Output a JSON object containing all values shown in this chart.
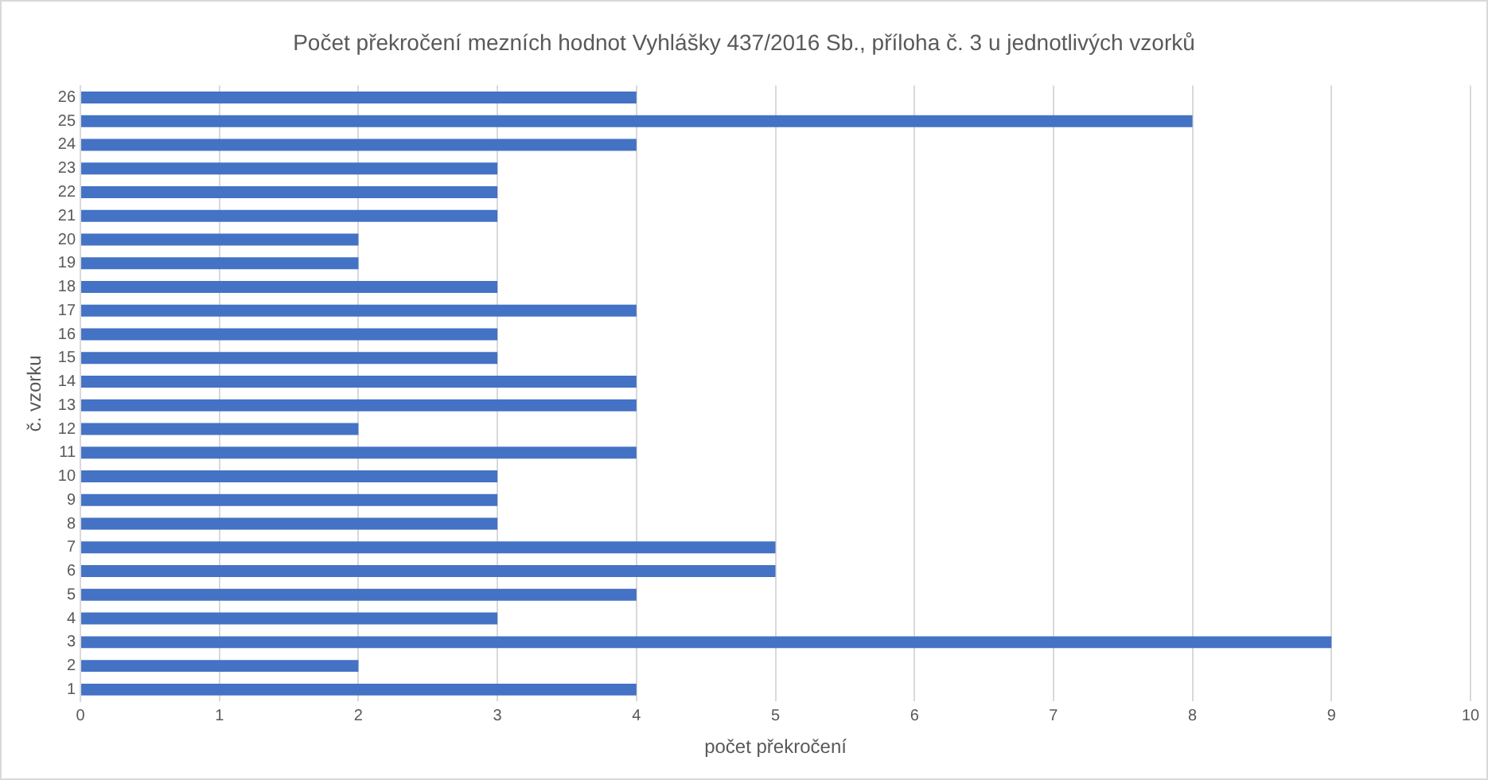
{
  "chart_data": {
    "type": "bar",
    "orientation": "horizontal",
    "title": "Počet překročení mezních hodnot Vyhlášky 437/2016 Sb., příloha č. 3 u jednotlivých vzorků",
    "xlabel": "počet překročení",
    "ylabel": "č. vzorku",
    "categories": [
      "26",
      "25",
      "24",
      "23",
      "22",
      "21",
      "20",
      "19",
      "18",
      "17",
      "16",
      "15",
      "14",
      "13",
      "12",
      "11",
      "10",
      "9",
      "8",
      "7",
      "6",
      "5",
      "4",
      "3",
      "2",
      "1"
    ],
    "values": [
      4,
      8,
      4,
      3,
      3,
      3,
      2,
      2,
      3,
      4,
      3,
      3,
      4,
      4,
      2,
      4,
      3,
      3,
      3,
      5,
      5,
      4,
      3,
      9,
      2,
      4
    ],
    "color": "#4472c4",
    "xlim": [
      0,
      10
    ],
    "xticks": [
      0,
      1,
      2,
      3,
      4,
      5,
      6,
      7,
      8,
      9,
      10
    ],
    "grid": "x",
    "legend": false
  }
}
